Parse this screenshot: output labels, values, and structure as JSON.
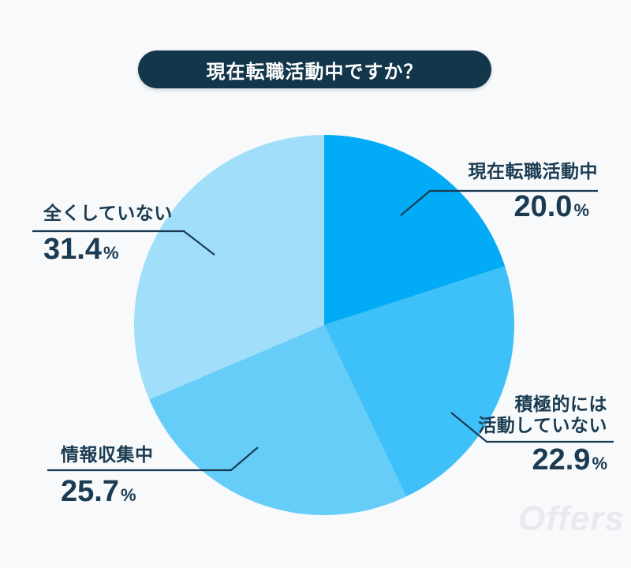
{
  "title": {
    "text": "現在転職活動中ですか？"
  },
  "watermark": "Offers",
  "colors": {
    "background": "#F7F9FA",
    "title_bg": "#14364A",
    "text_dark": "#1B3B52",
    "leader_line": "#1B3B52"
  },
  "chart_data": {
    "type": "pie",
    "title": "現在転職活動中ですか？",
    "unit": "%",
    "direction": "clockwise",
    "start_angle": "12-oclock",
    "legend_position": "callout-labels",
    "segments": [
      {
        "label": "現在転職活動中",
        "label_lines": [
          "現在転職活動中"
        ],
        "value": 20.0,
        "display": "20.0",
        "color": "#02ABF5"
      },
      {
        "label": "積極的には活動していない",
        "label_lines": [
          "積極的には",
          "活動していない"
        ],
        "value": 22.9,
        "display": "22.9",
        "color": "#3EC1F8"
      },
      {
        "label": "情報収集中",
        "label_lines": [
          "情報収集中"
        ],
        "value": 25.7,
        "display": "25.7",
        "color": "#66CDF9"
      },
      {
        "label": "全くしていない",
        "label_lines": [
          "全くしていない"
        ],
        "value": 31.4,
        "display": "31.4",
        "color": "#A0DEF9"
      }
    ]
  }
}
